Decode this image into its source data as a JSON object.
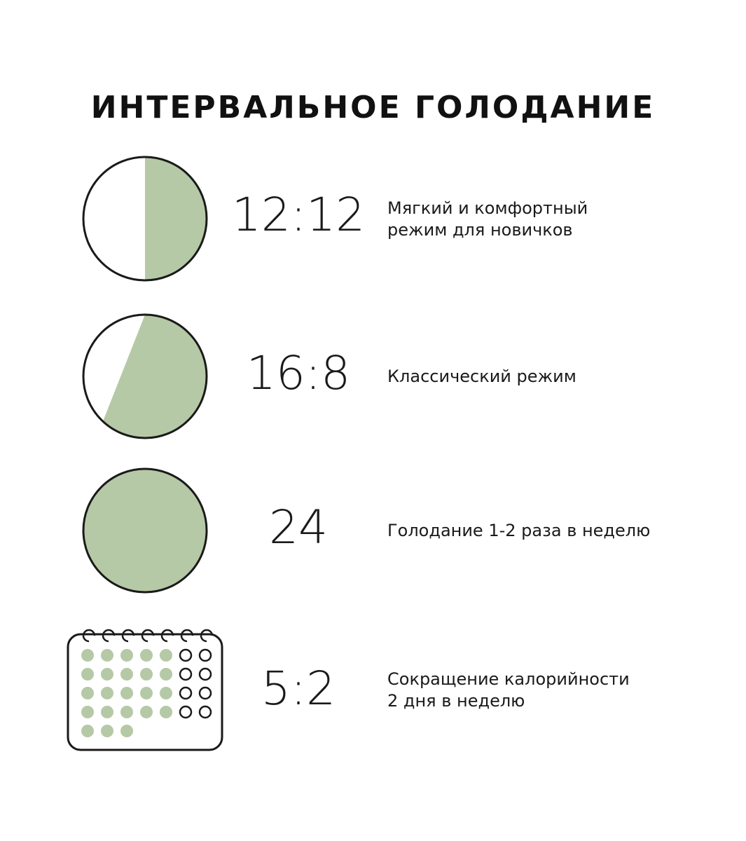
{
  "title": "ИНТЕРВАЛЬНОЕ ГОЛОДАНИЕ",
  "colors": {
    "accent": "#b5c9a6",
    "outline": "#1a1a1a"
  },
  "modes": [
    {
      "ratio": "12:12",
      "fasting_hours": 12,
      "desc_lines": [
        "Мягкий и комфортный",
        "режим для новичков"
      ]
    },
    {
      "ratio": "16:8",
      "fasting_hours": 16,
      "desc_lines": [
        "Классический режим"
      ]
    },
    {
      "ratio": "24",
      "fasting_hours": 24,
      "desc_lines": [
        "Голодание 1-2 раза в неделю"
      ]
    },
    {
      "ratio": "5:2",
      "icon": "calendar-icon",
      "filled_days": 23,
      "empty_days": 8,
      "desc_lines": [
        "Сокращение калорийности",
        "2 дня в неделю"
      ]
    }
  ]
}
